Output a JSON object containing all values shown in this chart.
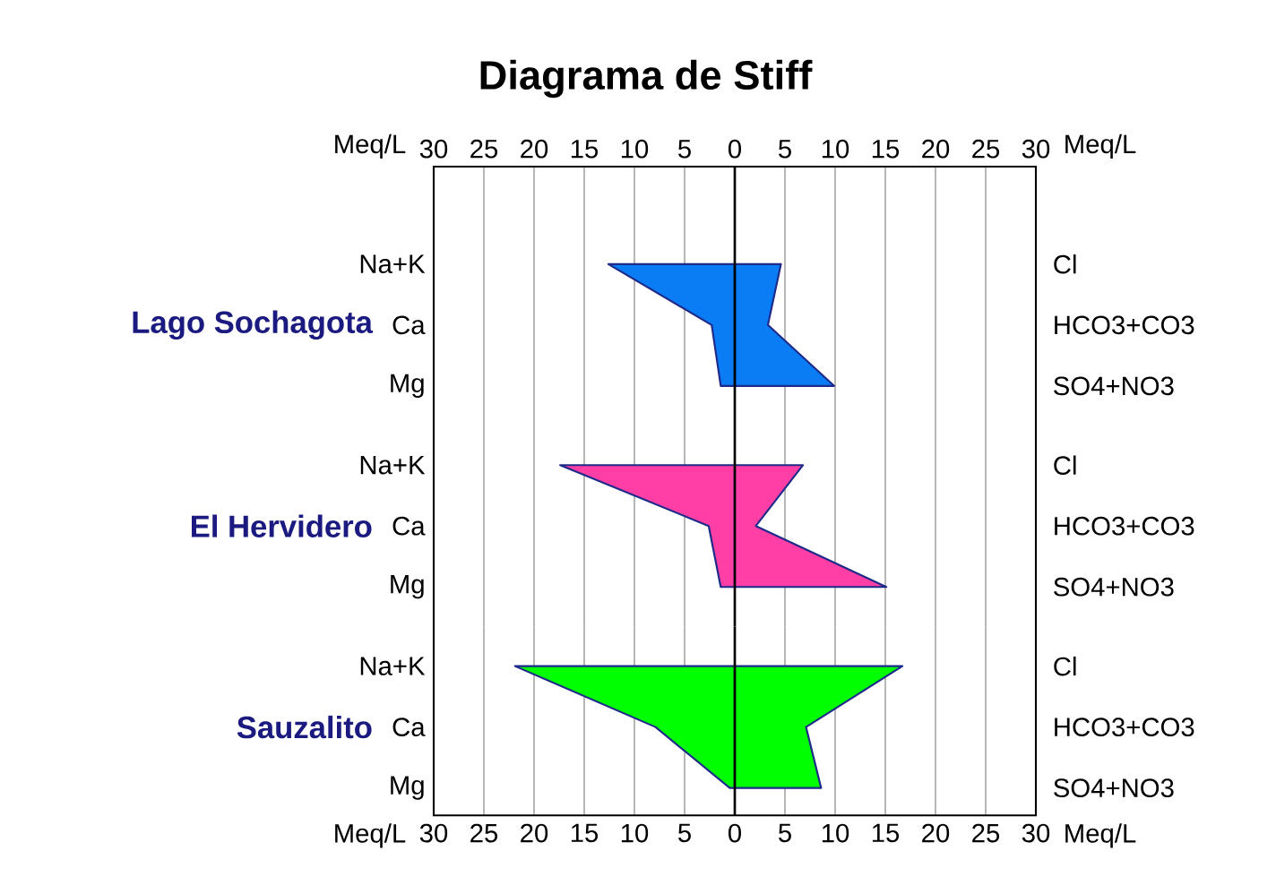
{
  "chart_data": [
    {
      "type": "area",
      "orientation": "horizontal",
      "title": "Diagrama de Stiff",
      "ylabel": "Lago Sochagota",
      "x2label": "Meq/L",
      "categories": [
        "Na+K",
        "Ca",
        "Mg"
      ],
      "y2_categories": [
        "Cl",
        "HCO3+CO3",
        "SO4+NO3"
      ],
      "series": [
        {
          "color": "#0a7cf4",
          "values": [
            -12.6,
            -2.3,
            -1.4
          ]
        },
        {
          "color": "#0a7cf4",
          "values": [
            4.6,
            3.3,
            9.9
          ]
        }
      ],
      "xlim": [
        -30,
        30
      ],
      "xticks": [
        -30,
        -25,
        -20,
        -15,
        -10,
        -5,
        0,
        5,
        10,
        15,
        20,
        25,
        30
      ],
      "x2lim": [
        -30,
        30
      ],
      "x2ticks": [
        {
          "value": -30,
          "label": "30"
        },
        {
          "value": -25,
          "label": "25"
        },
        {
          "value": -20,
          "label": "20"
        },
        {
          "value": -15,
          "label": "15"
        },
        {
          "value": -10,
          "label": "10"
        },
        {
          "value": -5,
          "label": "5"
        },
        0,
        5,
        10,
        15,
        20,
        25,
        30
      ],
      "grid": "x",
      "ref_lines": [
        {
          "axis": "x",
          "value": 0
        }
      ],
      "tick_labels": "y"
    },
    {
      "type": "area",
      "orientation": "horizontal",
      "ylabel": "El Hervidero",
      "categories": [
        "Na+K",
        "Ca",
        "Mg"
      ],
      "y2_categories": [
        "Cl",
        "HCO3+CO3",
        "SO4+NO3"
      ],
      "series": [
        {
          "color": "#ff3fa6",
          "values": [
            -17.4,
            -2.6,
            -1.4
          ]
        },
        {
          "color": "#ff3fa6",
          "values": [
            6.8,
            2.1,
            15.1
          ]
        }
      ],
      "xlim": [
        -30,
        30
      ],
      "xticks": [
        -30,
        -25,
        -20,
        -15,
        -10,
        -5,
        0,
        5,
        10,
        15,
        20,
        25,
        30
      ],
      "grid": "x",
      "ref_lines": [
        {
          "axis": "x",
          "value": 0
        }
      ],
      "tick_labels": "y"
    },
    {
      "type": "area",
      "orientation": "horizontal",
      "ylabel": "Sauzalito",
      "xlabel": "Meq/L",
      "categories": [
        "Na+K",
        "Ca",
        "Mg"
      ],
      "y2_categories": [
        "Cl",
        "HCO3+CO3",
        "SO4+NO3"
      ],
      "series": [
        {
          "color": "#00ff00",
          "values": [
            -21.9,
            -7.9,
            -0.5
          ]
        },
        {
          "color": "#00ff00",
          "values": [
            16.7,
            7.1,
            8.6
          ]
        }
      ],
      "xlim": [
        -30,
        30
      ],
      "xticks": [
        {
          "value": -30,
          "label": "30"
        },
        {
          "value": -25,
          "label": "25"
        },
        {
          "value": -20,
          "label": "20"
        },
        {
          "value": -15,
          "label": "15"
        },
        {
          "value": -10,
          "label": "10"
        },
        {
          "value": -5,
          "label": "5"
        },
        0,
        5,
        10,
        15,
        20,
        25,
        30
      ],
      "grid": "x",
      "ref_lines": [
        {
          "axis": "x",
          "value": 0
        }
      ]
    }
  ]
}
